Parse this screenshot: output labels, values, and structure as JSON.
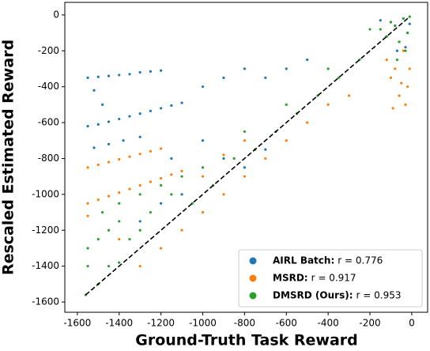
{
  "chart_data": {
    "type": "scatter",
    "x_label": "Ground-Truth Task Reward",
    "y_label": "Rescaled Estimated Reward",
    "xlim": [
      -1660,
      76
    ],
    "ylim": [
      -1657,
      70
    ],
    "xticks": [
      -1600,
      -1400,
      -1200,
      -1000,
      -800,
      -600,
      -400,
      -200,
      0
    ],
    "yticks": [
      -1600,
      -1400,
      -1200,
      -1000,
      -800,
      -600,
      -400,
      -200,
      0
    ],
    "identity_line": true,
    "legend": "lower right",
    "series": [
      {
        "name": "AIRL Batch:",
        "r_label": "r = 0.776",
        "color": "#1f77b4",
        "x": [
          -1550,
          -1500,
          -1450,
          -1400,
          -1350,
          -1300,
          -1250,
          -1200,
          -1520,
          -1480,
          -1550,
          -1500,
          -1450,
          -1400,
          -1350,
          -1300,
          -1250,
          -1200,
          -1150,
          -1100,
          -1520,
          -1450,
          -1380,
          -1300,
          -1000,
          -900,
          -800,
          -700,
          -600,
          -500,
          -1150,
          -1000,
          -900,
          -800,
          -700,
          -1300,
          -1200,
          -1100,
          -40,
          -80,
          -20,
          -60,
          -100,
          -30,
          -120,
          -10,
          -150,
          -70
        ],
        "values": [
          -350,
          -345,
          -340,
          -335,
          -330,
          -320,
          -315,
          -310,
          -420,
          -500,
          -620,
          -610,
          -595,
          -580,
          -565,
          -550,
          -535,
          -520,
          -505,
          -490,
          -740,
          -720,
          -700,
          -680,
          -400,
          -350,
          -300,
          -350,
          -300,
          -250,
          -800,
          -700,
          -800,
          -850,
          -750,
          -1150,
          -1050,
          -1000,
          -20,
          -60,
          -100,
          -150,
          -40,
          -180,
          -120,
          -50,
          -30,
          -200
        ]
      },
      {
        "name": "MSRD:",
        "r_label": "r = 0.917",
        "color": "#ff7f0e",
        "x": [
          -1550,
          -1500,
          -1450,
          -1400,
          -1350,
          -1300,
          -1250,
          -1200,
          -1550,
          -1500,
          -1450,
          -1400,
          -1350,
          -1300,
          -1250,
          -1200,
          -1150,
          -1100,
          -1550,
          -1400,
          -1300,
          -1200,
          -1100,
          -1000,
          -900,
          -800,
          -700,
          -600,
          -500,
          -400,
          -300,
          -1000,
          -900,
          -800,
          -40,
          -80,
          -20,
          -60,
          -100,
          -30,
          -120,
          -10,
          -90,
          -50
        ],
        "values": [
          -850,
          -835,
          -820,
          -805,
          -790,
          -775,
          -760,
          -745,
          -1050,
          -1030,
          -1010,
          -990,
          -970,
          -950,
          -930,
          -910,
          -890,
          -870,
          -1120,
          -1250,
          -1400,
          -1300,
          -1200,
          -1100,
          -1000,
          -900,
          -800,
          -700,
          -600,
          -500,
          -450,
          -900,
          -780,
          -700,
          -200,
          -300,
          -400,
          -450,
          -350,
          -500,
          -250,
          -300,
          -520,
          -380
        ]
      },
      {
        "name": "DMSRD (Ours):",
        "r_label": "r = 0.953",
        "color": "#2ca02c",
        "x": [
          -1560,
          -1500,
          -1450,
          -1400,
          -1550,
          -1500,
          -1450,
          -1400,
          -1350,
          -1300,
          -1550,
          -1480,
          -1300,
          -1200,
          -1100,
          -1000,
          -1400,
          -1250,
          -1150,
          -1050,
          -950,
          -850,
          -750,
          -650,
          -550,
          -450,
          -350,
          -250,
          -800,
          -600,
          -400,
          -200,
          -40,
          -80,
          -20,
          -60,
          -100,
          -30,
          -120,
          -10,
          -150,
          -70
        ],
        "values": [
          -1560,
          -1500,
          -1400,
          -1380,
          -1300,
          -1250,
          -1200,
          -1150,
          -1250,
          -1200,
          -1400,
          -1100,
          -1000,
          -950,
          -900,
          -850,
          -1050,
          -1100,
          -1000,
          -1050,
          -950,
          -800,
          -750,
          -650,
          -550,
          -450,
          -350,
          -250,
          -650,
          -500,
          -300,
          -80,
          -20,
          -60,
          -100,
          -150,
          -40,
          -200,
          -120,
          -10,
          -80,
          -250
        ]
      }
    ]
  }
}
